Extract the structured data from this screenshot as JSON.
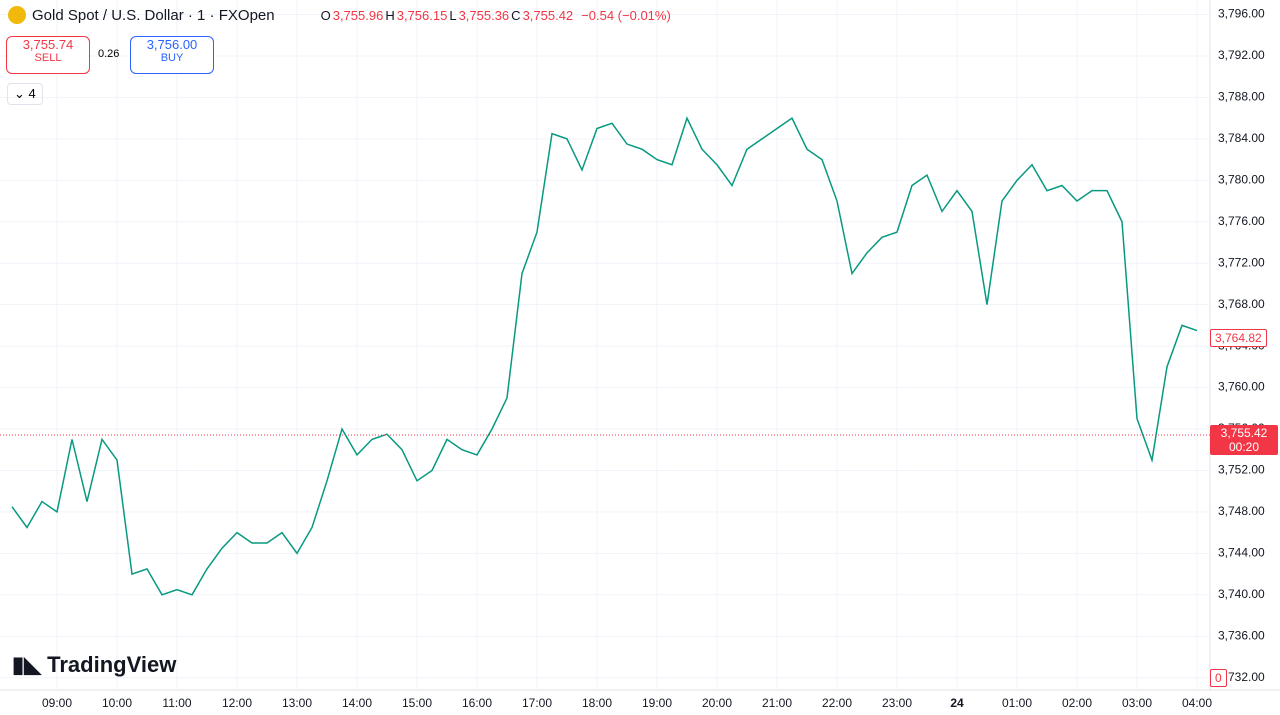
{
  "header": {
    "symbol": "Gold Spot / U.S. Dollar · 1 · FXOpen",
    "o_label": "O",
    "open": "3,755.96",
    "h_label": "H",
    "high": "3,756.15",
    "l_label": "L",
    "low": "3,755.36",
    "c_label": "C",
    "close": "3,755.42",
    "change": "−0.54 (−0.01%)"
  },
  "trade": {
    "sell_price": "3,755.74",
    "sell": "SELL",
    "spread": "0.26",
    "buy_price": "3,756.00",
    "buy": "BUY",
    "indicators": "4"
  },
  "logo": "TradingView",
  "price_labels": {
    "marker": "3,764.82",
    "last": "3,755.42",
    "countdown": "00:20",
    "volume": "0"
  },
  "chart_data": {
    "type": "line",
    "color": "#089981",
    "categories": [
      "08:15",
      "08:30",
      "08:45",
      "09:00",
      "09:15",
      "09:30",
      "09:45",
      "10:00",
      "10:15",
      "10:30",
      "10:45",
      "11:00",
      "11:15",
      "11:30",
      "11:45",
      "12:00",
      "12:15",
      "12:30",
      "12:45",
      "13:00",
      "13:15",
      "13:30",
      "13:45",
      "14:00",
      "14:15",
      "14:30",
      "14:45",
      "15:00",
      "15:15",
      "15:30",
      "15:45",
      "16:00",
      "16:15",
      "16:30",
      "16:45",
      "17:00",
      "17:15",
      "17:30",
      "17:45",
      "18:00",
      "18:15",
      "18:30",
      "18:45",
      "19:00",
      "19:15",
      "19:30",
      "19:45",
      "20:00",
      "20:15",
      "20:30",
      "20:45",
      "21:00",
      "21:15",
      "21:30",
      "21:45",
      "22:00",
      "22:15",
      "22:30",
      "22:45",
      "23:00",
      "23:15",
      "23:30",
      "23:45",
      "00:00",
      "00:15",
      "00:30",
      "00:45",
      "01:00",
      "01:15",
      "01:30",
      "01:45",
      "02:00",
      "02:15",
      "02:30",
      "02:45",
      "03:00",
      "03:15",
      "03:30",
      "03:45",
      "04:00"
    ],
    "values": [
      3748.5,
      3746.5,
      3749,
      3748,
      3755,
      3749,
      3755,
      3753,
      3742,
      3742.5,
      3740,
      3740.5,
      3740,
      3742.5,
      3744.5,
      3746,
      3745,
      3745,
      3746,
      3744,
      3746.5,
      3751,
      3756,
      3753.5,
      3755,
      3755.5,
      3754,
      3751,
      3752,
      3755,
      3754,
      3753.5,
      3756,
      3759,
      3771,
      3775,
      3784.5,
      3784,
      3781,
      3785,
      3785.5,
      3783.5,
      3783,
      3782,
      3781.5,
      3786,
      3783,
      3781.5,
      3779.5,
      3783,
      3784,
      3785,
      3786,
      3783,
      3782,
      3778,
      3771,
      3773,
      3774.5,
      3775,
      3779.5,
      3780.5,
      3777,
      3779,
      3777,
      3768,
      3778,
      3780,
      3781.5,
      3779,
      3779.5,
      3778,
      3779,
      3779,
      3776,
      3757,
      3753,
      3762,
      3766,
      3765.5
    ],
    "xticks": [
      "09:00",
      "10:00",
      "11:00",
      "12:00",
      "13:00",
      "14:00",
      "15:00",
      "16:00",
      "17:00",
      "18:00",
      "19:00",
      "20:00",
      "21:00",
      "22:00",
      "23:00",
      "24",
      "01:00",
      "02:00",
      "03:00",
      "04:00"
    ],
    "ylim": [
      3731.2,
      3797.4
    ],
    "yticks": [
      {
        "value": 3732,
        "label": "3,732.00"
      },
      {
        "value": 3736,
        "label": "3,736.00"
      },
      {
        "value": 3740,
        "label": "3,740.00"
      },
      {
        "value": 3744,
        "label": "3,744.00"
      },
      {
        "value": 3748,
        "label": "3,748.00"
      },
      {
        "value": 3752,
        "label": "3,752.00"
      },
      {
        "value": 3756,
        "label": "3,756.00"
      },
      {
        "value": 3760,
        "label": "3,760.00"
      },
      {
        "value": 3764,
        "label": "3,764.00"
      },
      {
        "value": 3768,
        "label": "3,768.00"
      },
      {
        "value": 3772,
        "label": "3,772.00"
      },
      {
        "value": 3776,
        "label": "3,776.00"
      },
      {
        "value": 3780,
        "label": "3,780.00"
      },
      {
        "value": 3784,
        "label": "3,784.00"
      },
      {
        "value": 3788,
        "label": "3,788.00"
      },
      {
        "value": 3792,
        "label": "3,792.00"
      },
      {
        "value": 3796,
        "label": "3,796.00"
      }
    ],
    "grid": true,
    "last_price": 3755.42,
    "marker_price": 3764.82
  }
}
